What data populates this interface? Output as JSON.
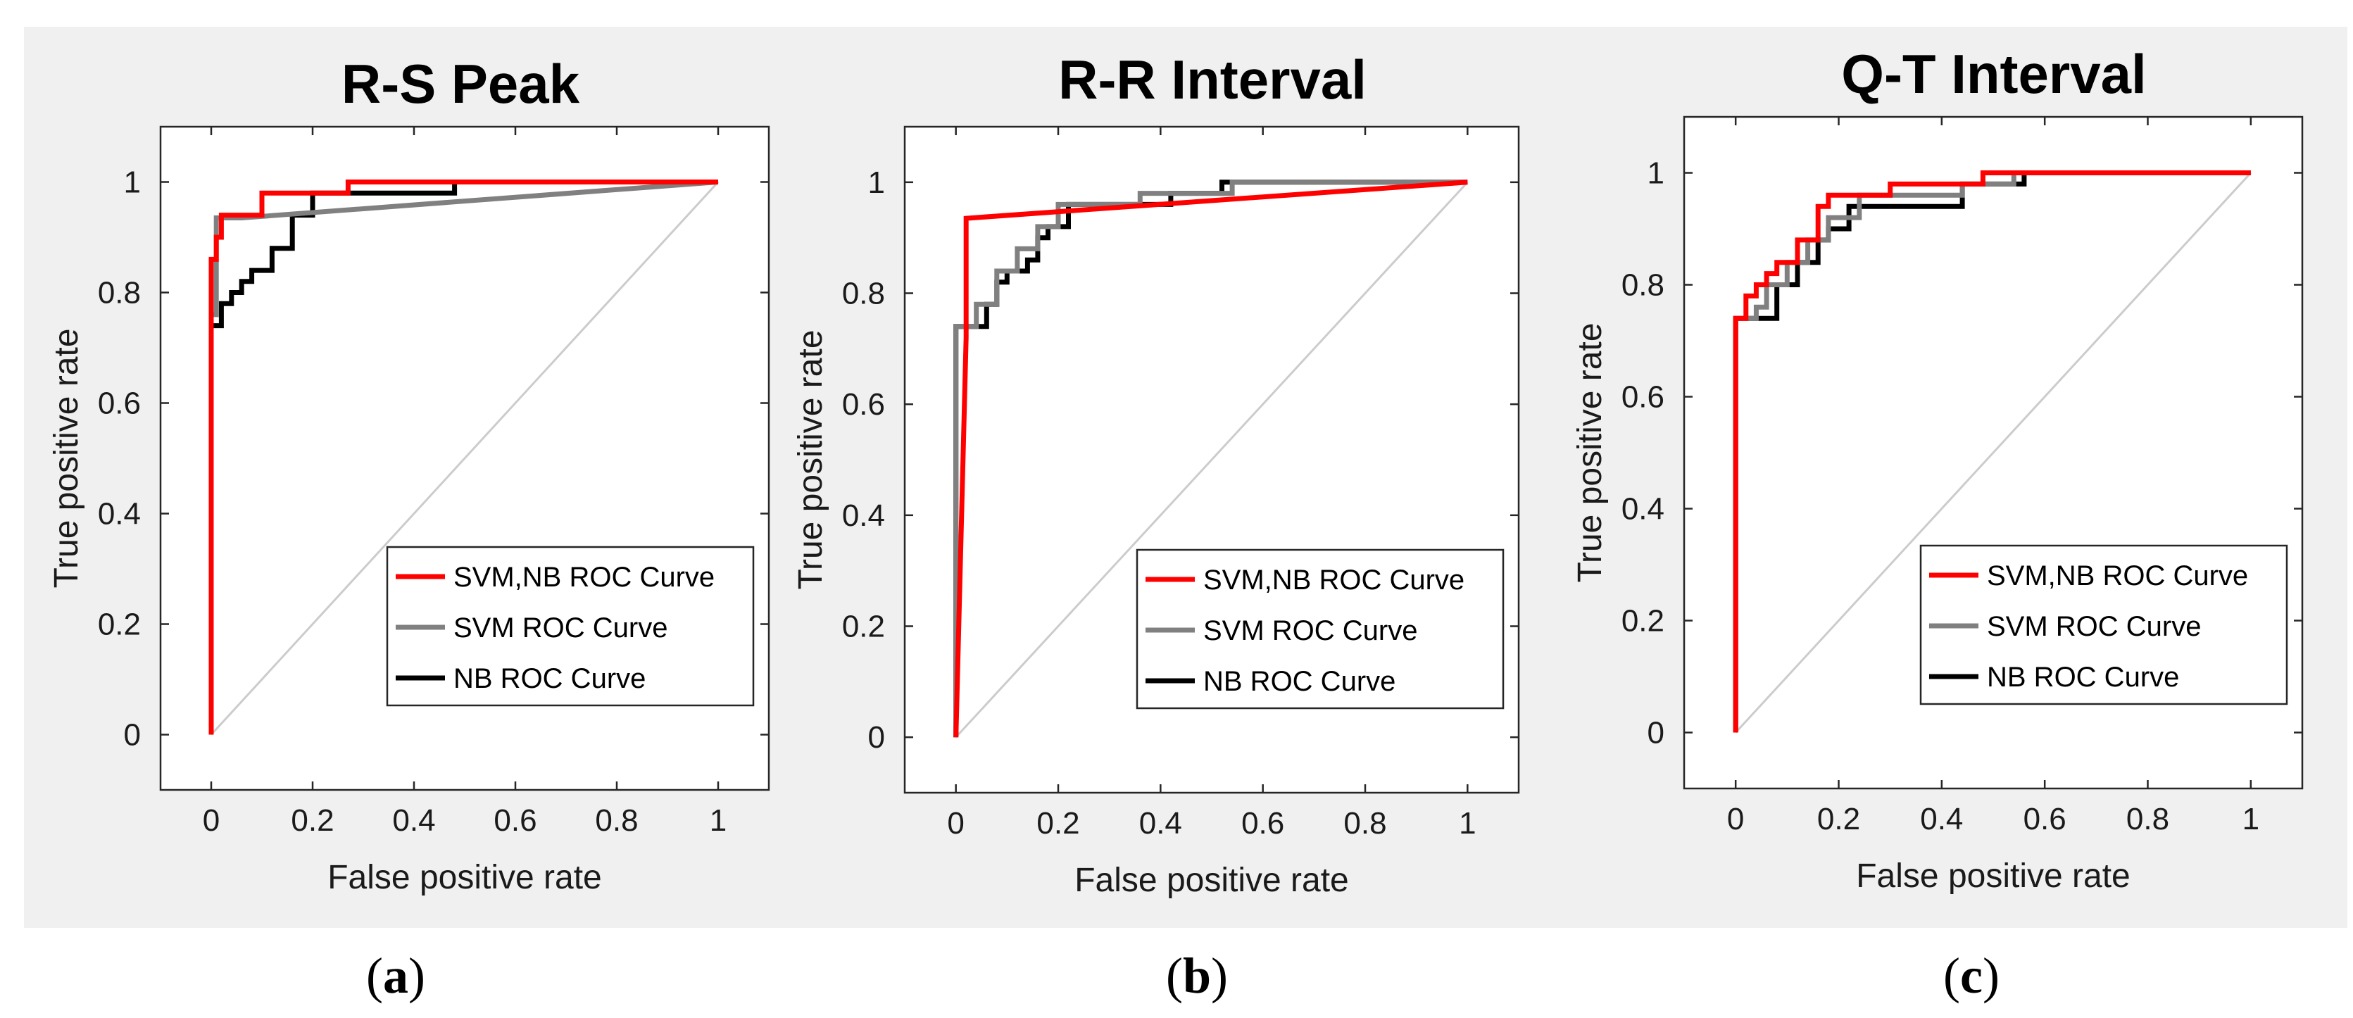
{
  "figure": {
    "background": "#f0f0f0",
    "axes_background": "#ffffff",
    "diagonal_color": "#cccccc"
  },
  "chart_data": [
    {
      "type": "line",
      "title": "R-S Peak",
      "xlabel": "False positive rate",
      "ylabel": "True positive rate",
      "xlim": [
        -0.1,
        1.1
      ],
      "ylim": [
        -0.1,
        1.1
      ],
      "xticks": [
        "0",
        "0.2",
        "0.4",
        "0.6",
        "0.8",
        "1"
      ],
      "yticks": [
        "0",
        "0.2",
        "0.4",
        "0.6",
        "0.8",
        "1"
      ],
      "caption": "a",
      "legend_position": "bottom-right",
      "series": [
        {
          "name": "SVM,NB ROC Curve",
          "color": "#ff0000",
          "x": [
            0,
            0,
            0.01,
            0.01,
            0.02,
            0.02,
            0.1,
            0.1,
            0.27,
            0.27,
            0.47,
            1
          ],
          "y": [
            0,
            0.86,
            0.86,
            0.9,
            0.9,
            0.94,
            0.94,
            0.98,
            0.98,
            1.0,
            1.0,
            1.0
          ]
        },
        {
          "name": "SVM ROC Curve",
          "color": "#808080",
          "x": [
            0,
            0,
            0.01,
            0.01,
            0.06,
            1
          ],
          "y": [
            0,
            0.76,
            0.76,
            0.935,
            0.935,
            1.0
          ]
        },
        {
          "name": "NB ROC Curve",
          "color": "#000000",
          "x": [
            0,
            0,
            0.02,
            0.02,
            0.04,
            0.04,
            0.06,
            0.06,
            0.08,
            0.08,
            0.12,
            0.12,
            0.16,
            0.16,
            0.2,
            0.2,
            0.48,
            0.48,
            1
          ],
          "y": [
            0,
            0.74,
            0.74,
            0.78,
            0.78,
            0.8,
            0.8,
            0.82,
            0.82,
            0.84,
            0.84,
            0.88,
            0.88,
            0.94,
            0.94,
            0.98,
            0.98,
            1.0,
            1.0
          ]
        }
      ]
    },
    {
      "type": "line",
      "title": "R-R Interval",
      "xlabel": "False positive rate",
      "ylabel": "True positive rate",
      "xlim": [
        -0.1,
        1.1
      ],
      "ylim": [
        -0.1,
        1.1
      ],
      "xticks": [
        "0",
        "0.2",
        "0.4",
        "0.6",
        "0.8",
        "1"
      ],
      "yticks": [
        "0",
        "0.2",
        "0.4",
        "0.6",
        "0.8",
        "1"
      ],
      "caption": "b",
      "legend_position": "bottom-right",
      "series": [
        {
          "name": "SVM,NB ROC Curve",
          "color": "#ff0000",
          "x": [
            0,
            0.02,
            0.02,
            1
          ],
          "y": [
            0,
            0.72,
            0.935,
            1.0
          ]
        },
        {
          "name": "SVM ROC Curve",
          "color": "#808080",
          "x": [
            0,
            0,
            0.04,
            0.04,
            0.08,
            0.08,
            0.12,
            0.12,
            0.16,
            0.16,
            0.2,
            0.2,
            0.36,
            0.36,
            0.54,
            0.54,
            1
          ],
          "y": [
            0,
            0.74,
            0.74,
            0.78,
            0.78,
            0.84,
            0.84,
            0.88,
            0.88,
            0.92,
            0.92,
            0.96,
            0.96,
            0.98,
            0.98,
            1.0,
            1.0
          ]
        },
        {
          "name": "NB ROC Curve",
          "color": "#000000",
          "x": [
            0,
            0,
            0.06,
            0.06,
            0.08,
            0.08,
            0.1,
            0.1,
            0.14,
            0.14,
            0.16,
            0.16,
            0.18,
            0.18,
            0.22,
            0.22,
            0.42,
            0.42,
            0.52,
            0.52,
            1
          ],
          "y": [
            0,
            0.74,
            0.74,
            0.78,
            0.78,
            0.82,
            0.82,
            0.84,
            0.84,
            0.86,
            0.86,
            0.9,
            0.9,
            0.92,
            0.92,
            0.96,
            0.96,
            0.98,
            0.98,
            1.0,
            1.0
          ]
        }
      ]
    },
    {
      "type": "line",
      "title": "Q-T Interval",
      "xlabel": "False positive rate",
      "ylabel": "True positive rate",
      "xlim": [
        -0.1,
        1.1
      ],
      "ylim": [
        -0.1,
        1.1
      ],
      "xticks": [
        "0",
        "0.2",
        "0.4",
        "0.6",
        "0.8",
        "1"
      ],
      "yticks": [
        "0",
        "0.2",
        "0.4",
        "0.6",
        "0.8",
        "1"
      ],
      "caption": "c",
      "legend_position": "bottom-right",
      "series": [
        {
          "name": "SVM,NB ROC Curve",
          "color": "#ff0000",
          "x": [
            0,
            0,
            0.02,
            0.02,
            0.04,
            0.04,
            0.06,
            0.06,
            0.08,
            0.08,
            0.12,
            0.12,
            0.16,
            0.16,
            0.18,
            0.18,
            0.3,
            0.3,
            0.48,
            0.48,
            1
          ],
          "y": [
            0,
            0.74,
            0.74,
            0.78,
            0.78,
            0.8,
            0.8,
            0.82,
            0.82,
            0.84,
            0.84,
            0.88,
            0.88,
            0.94,
            0.94,
            0.96,
            0.96,
            0.98,
            0.98,
            1.0,
            1.0
          ]
        },
        {
          "name": "SVM ROC Curve",
          "color": "#808080",
          "x": [
            0,
            0,
            0.04,
            0.04,
            0.06,
            0.06,
            0.1,
            0.1,
            0.14,
            0.14,
            0.18,
            0.18,
            0.24,
            0.24,
            0.44,
            0.44,
            0.54,
            0.54,
            1
          ],
          "y": [
            0,
            0.74,
            0.74,
            0.76,
            0.76,
            0.8,
            0.8,
            0.84,
            0.84,
            0.88,
            0.88,
            0.92,
            0.92,
            0.96,
            0.96,
            0.98,
            0.98,
            1.0,
            1.0
          ]
        },
        {
          "name": "NB ROC Curve",
          "color": "#000000",
          "x": [
            0,
            0,
            0.08,
            0.08,
            0.12,
            0.12,
            0.16,
            0.16,
            0.18,
            0.18,
            0.22,
            0.22,
            0.44,
            0.44,
            0.56,
            0.56,
            1
          ],
          "y": [
            0,
            0.74,
            0.74,
            0.8,
            0.8,
            0.84,
            0.84,
            0.88,
            0.88,
            0.9,
            0.9,
            0.94,
            0.94,
            0.98,
            0.98,
            1.0,
            1.0
          ]
        }
      ]
    }
  ]
}
